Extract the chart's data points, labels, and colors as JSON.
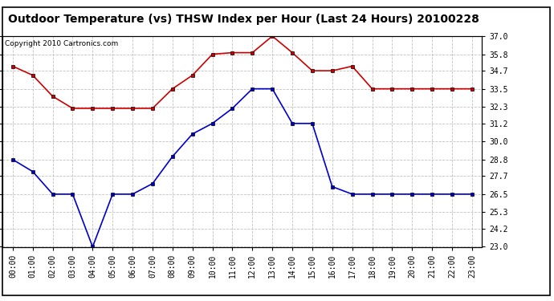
{
  "title": "Outdoor Temperature (vs) THSW Index per Hour (Last 24 Hours) 20100228",
  "copyright": "Copyright 2010 Cartronics.com",
  "hours": [
    0,
    1,
    2,
    3,
    4,
    5,
    6,
    7,
    8,
    9,
    10,
    11,
    12,
    13,
    14,
    15,
    16,
    17,
    18,
    19,
    20,
    21,
    22,
    23
  ],
  "hour_labels": [
    "00:00",
    "01:00",
    "02:00",
    "03:00",
    "04:00",
    "05:00",
    "06:00",
    "07:00",
    "08:00",
    "09:00",
    "10:00",
    "11:00",
    "12:00",
    "13:00",
    "14:00",
    "15:00",
    "16:00",
    "17:00",
    "18:00",
    "19:00",
    "20:00",
    "21:00",
    "22:00",
    "23:00"
  ],
  "temp_red": [
    35.0,
    34.4,
    33.0,
    32.2,
    32.2,
    32.2,
    32.2,
    32.2,
    33.5,
    34.4,
    35.8,
    35.9,
    35.9,
    37.0,
    35.9,
    34.7,
    34.7,
    35.0,
    33.5,
    33.5,
    33.5,
    33.5,
    33.5,
    33.5
  ],
  "temp_blue": [
    28.8,
    28.0,
    26.5,
    26.5,
    23.0,
    26.5,
    26.5,
    27.2,
    29.0,
    30.5,
    31.2,
    32.2,
    33.5,
    33.5,
    31.2,
    31.2,
    27.0,
    26.5,
    26.5,
    26.5,
    26.5,
    26.5,
    26.5,
    26.5
  ],
  "yticks": [
    23.0,
    24.2,
    25.3,
    26.5,
    27.7,
    28.8,
    30.0,
    31.2,
    32.3,
    33.5,
    34.7,
    35.8,
    37.0
  ],
  "ymin": 23.0,
  "ymax": 37.0,
  "red_color": "#cc0000",
  "blue_color": "#0000cc",
  "bg_color": "#ffffff",
  "grid_color": "#bbbbbb",
  "title_color": "#000000",
  "copyright_color": "#000000",
  "title_fontsize": 10,
  "copyright_fontsize": 6.5,
  "tick_fontsize": 7,
  "ytick_fontsize": 7
}
